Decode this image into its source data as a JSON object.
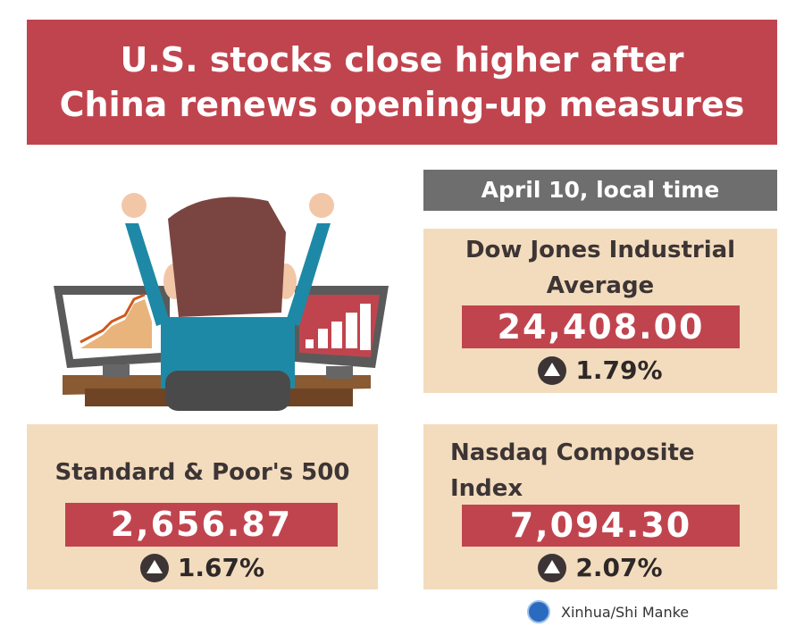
{
  "title": {
    "line1": "U.S. stocks close higher after",
    "line2": "China renews opening-up measures"
  },
  "date": "April 10, local time",
  "indices": [
    {
      "name": "Dow Jones Industrial Average",
      "value": "24,408.00",
      "change": "1.79%",
      "direction": "up"
    },
    {
      "name": "Standard & Poor's 500",
      "value": "2,656.87",
      "change": "1.67%",
      "direction": "up"
    },
    {
      "name": "Nasdaq Composite Index",
      "value": "7,094.30",
      "change": "2.07%",
      "direction": "up"
    }
  ],
  "credit": "Xinhua/Shi Manke",
  "colors": {
    "accent": "#c0444e",
    "panel": "#f3dcbd",
    "date_bar": "#6e6e6e"
  }
}
